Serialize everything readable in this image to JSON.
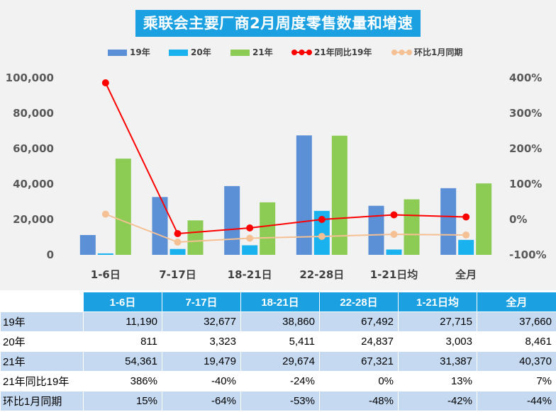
{
  "chart_data": {
    "type": "bar",
    "title": "乘联会主要厂商2月周度零售数量和增速",
    "categories": [
      "1-6日",
      "7-17日",
      "18-21日",
      "22-28日",
      "1-21日均",
      "全月"
    ],
    "series": [
      {
        "name": "19年",
        "kind": "bar",
        "color": "#5b8fd6",
        "values": [
          11190,
          32677,
          38860,
          67492,
          27715,
          37660
        ]
      },
      {
        "name": "20年",
        "kind": "bar",
        "color": "#1ab2ee",
        "values": [
          811,
          3323,
          5411,
          24837,
          3003,
          8461
        ]
      },
      {
        "name": "21年",
        "kind": "bar",
        "color": "#8ccc55",
        "values": [
          54361,
          19479,
          29674,
          67321,
          31387,
          40370
        ]
      },
      {
        "name": "21年同比19年",
        "kind": "line",
        "axis": "right",
        "color": "#ff0000",
        "values": [
          386,
          -40,
          -24,
          0,
          13,
          7
        ]
      },
      {
        "name": "环比1月同期",
        "kind": "line",
        "axis": "right",
        "color": "#f5c093",
        "values": [
          15,
          -64,
          -53,
          -48,
          -42,
          -44
        ]
      }
    ],
    "y_left": {
      "ticks": [
        "0",
        "20,000",
        "40,000",
        "60,000",
        "80,000",
        "100,000"
      ],
      "range": [
        0,
        100000
      ]
    },
    "y_right": {
      "ticks": [
        "-100%",
        "0%",
        "100%",
        "200%",
        "300%",
        "400%"
      ],
      "range": [
        -100,
        400
      ]
    },
    "legend_position": "top",
    "grid": false
  },
  "table": {
    "headers": [
      "1-6日",
      "7-17日",
      "18-21日",
      "22-28日",
      "1-21日均",
      "全月"
    ],
    "rows": [
      {
        "label": "19年",
        "cells": [
          "11,190",
          "32,677",
          "38,860",
          "67,492",
          "27,715",
          "37,660"
        ]
      },
      {
        "label": "20年",
        "cells": [
          "811",
          "3,323",
          "5,411",
          "24,837",
          "3,003",
          "8,461"
        ]
      },
      {
        "label": "21年",
        "cells": [
          "54,361",
          "19,479",
          "29,674",
          "67,321",
          "31,387",
          "40,370"
        ]
      },
      {
        "label": "21年同比19年",
        "cells": [
          "386%",
          "-40%",
          "-24%",
          "0%",
          "13%",
          "7%"
        ]
      },
      {
        "label": "环比1月同期",
        "cells": [
          "15%",
          "-64%",
          "-53%",
          "-48%",
          "-42%",
          "-44%"
        ]
      }
    ]
  },
  "colors": {
    "title_bg": "#1ba1e2",
    "header_bg": "#1ba1e2",
    "row_blue": "#c5d9f1",
    "chart_bg": "#f2f2f2"
  }
}
